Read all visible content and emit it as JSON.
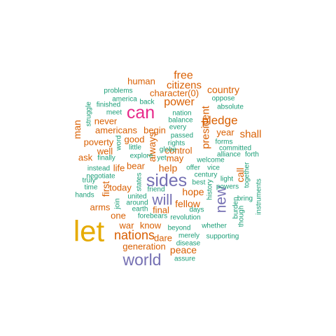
{
  "colors": {
    "orange": "#d95f02",
    "green": "#1b9e77",
    "purple": "#7570b3",
    "magenta": "#e7298a",
    "gold": "#e6ab02"
  },
  "words": [
    {
      "text": "let",
      "color": "gold"
    },
    {
      "text": "can",
      "color": "magenta"
    },
    {
      "text": "sides",
      "color": "purple"
    },
    {
      "text": "world",
      "color": "purple"
    },
    {
      "text": "will",
      "color": "purple"
    },
    {
      "text": "new",
      "color": "purple"
    },
    {
      "text": "nations",
      "color": "orange"
    },
    {
      "text": "pledge",
      "color": "orange"
    },
    {
      "text": "power",
      "color": "orange"
    },
    {
      "text": "free",
      "color": "orange"
    },
    {
      "text": "citizens",
      "color": "orange"
    },
    {
      "text": "shall",
      "color": "orange"
    },
    {
      "text": "president",
      "color": "orange"
    },
    {
      "text": "country",
      "color": "orange"
    },
    {
      "text": "character(0)",
      "color": "orange"
    },
    {
      "text": "peace",
      "color": "orange"
    },
    {
      "text": "fellow",
      "color": "orange"
    },
    {
      "text": "hope",
      "color": "orange"
    },
    {
      "text": "help",
      "color": "orange"
    },
    {
      "text": "call",
      "color": "orange"
    },
    {
      "text": "man",
      "color": "orange"
    },
    {
      "text": "first",
      "color": "orange"
    },
    {
      "text": "always",
      "color": "orange"
    },
    {
      "text": "human",
      "color": "orange"
    },
    {
      "text": "never",
      "color": "orange"
    },
    {
      "text": "americans",
      "color": "orange"
    },
    {
      "text": "begin",
      "color": "orange"
    },
    {
      "text": "year",
      "color": "orange"
    },
    {
      "text": "poverty",
      "color": "orange"
    },
    {
      "text": "good",
      "color": "orange"
    },
    {
      "text": "well",
      "color": "orange"
    },
    {
      "text": "control",
      "color": "orange"
    },
    {
      "text": "ask",
      "color": "orange"
    },
    {
      "text": "may",
      "color": "orange"
    },
    {
      "text": "bear",
      "color": "orange"
    },
    {
      "text": "life",
      "color": "orange"
    },
    {
      "text": "today",
      "color": "orange"
    },
    {
      "text": "arms",
      "color": "orange"
    },
    {
      "text": "one",
      "color": "orange"
    },
    {
      "text": "war",
      "color": "orange"
    },
    {
      "text": "know",
      "color": "orange"
    },
    {
      "text": "final",
      "color": "orange"
    },
    {
      "text": "dare",
      "color": "orange"
    },
    {
      "text": "generation",
      "color": "orange"
    },
    {
      "text": "problems",
      "color": "green"
    },
    {
      "text": "america",
      "color": "green"
    },
    {
      "text": "back",
      "color": "green"
    },
    {
      "text": "finished",
      "color": "green"
    },
    {
      "text": "meet",
      "color": "green"
    },
    {
      "text": "struggle",
      "color": "green"
    },
    {
      "text": "nation",
      "color": "green"
    },
    {
      "text": "balance",
      "color": "green"
    },
    {
      "text": "every",
      "color": "green"
    },
    {
      "text": "oppose",
      "color": "green"
    },
    {
      "text": "absolute",
      "color": "green"
    },
    {
      "text": "passed",
      "color": "green"
    },
    {
      "text": "rights",
      "color": "green"
    },
    {
      "text": "word",
      "color": "green"
    },
    {
      "text": "little",
      "color": "green"
    },
    {
      "text": "explore",
      "color": "green"
    },
    {
      "text": "finally",
      "color": "green"
    },
    {
      "text": "globe",
      "color": "green"
    },
    {
      "text": "yet",
      "color": "green"
    },
    {
      "text": "forms",
      "color": "green"
    },
    {
      "text": "committed",
      "color": "green"
    },
    {
      "text": "alliance",
      "color": "green"
    },
    {
      "text": "forth",
      "color": "green"
    },
    {
      "text": "welcome",
      "color": "green"
    },
    {
      "text": "instead",
      "color": "green"
    },
    {
      "text": "negotiate",
      "color": "green"
    },
    {
      "text": "truly",
      "color": "green"
    },
    {
      "text": "time",
      "color": "green"
    },
    {
      "text": "hands",
      "color": "green"
    },
    {
      "text": "join",
      "color": "green"
    },
    {
      "text": "states",
      "color": "green"
    },
    {
      "text": "united",
      "color": "green"
    },
    {
      "text": "around",
      "color": "green"
    },
    {
      "text": "earth",
      "color": "green"
    },
    {
      "text": "friend",
      "color": "green"
    },
    {
      "text": "offer",
      "color": "green"
    },
    {
      "text": "vice",
      "color": "green"
    },
    {
      "text": "best",
      "color": "green"
    },
    {
      "text": "century",
      "color": "green"
    },
    {
      "text": "light",
      "color": "green"
    },
    {
      "text": "powers",
      "color": "green"
    },
    {
      "text": "history",
      "color": "green"
    },
    {
      "text": "together",
      "color": "green"
    },
    {
      "text": "days",
      "color": "green"
    },
    {
      "text": "bring",
      "color": "green"
    },
    {
      "text": "burden",
      "color": "green"
    },
    {
      "text": "instruments",
      "color": "green"
    },
    {
      "text": "forebears",
      "color": "green"
    },
    {
      "text": "revolution",
      "color": "green"
    },
    {
      "text": "whether",
      "color": "green"
    },
    {
      "text": "though",
      "color": "green"
    },
    {
      "text": "beyond",
      "color": "green"
    },
    {
      "text": "merely",
      "color": "green"
    },
    {
      "text": "supporting",
      "color": "green"
    },
    {
      "text": "disease",
      "color": "green"
    },
    {
      "text": "assure",
      "color": "green"
    }
  ]
}
